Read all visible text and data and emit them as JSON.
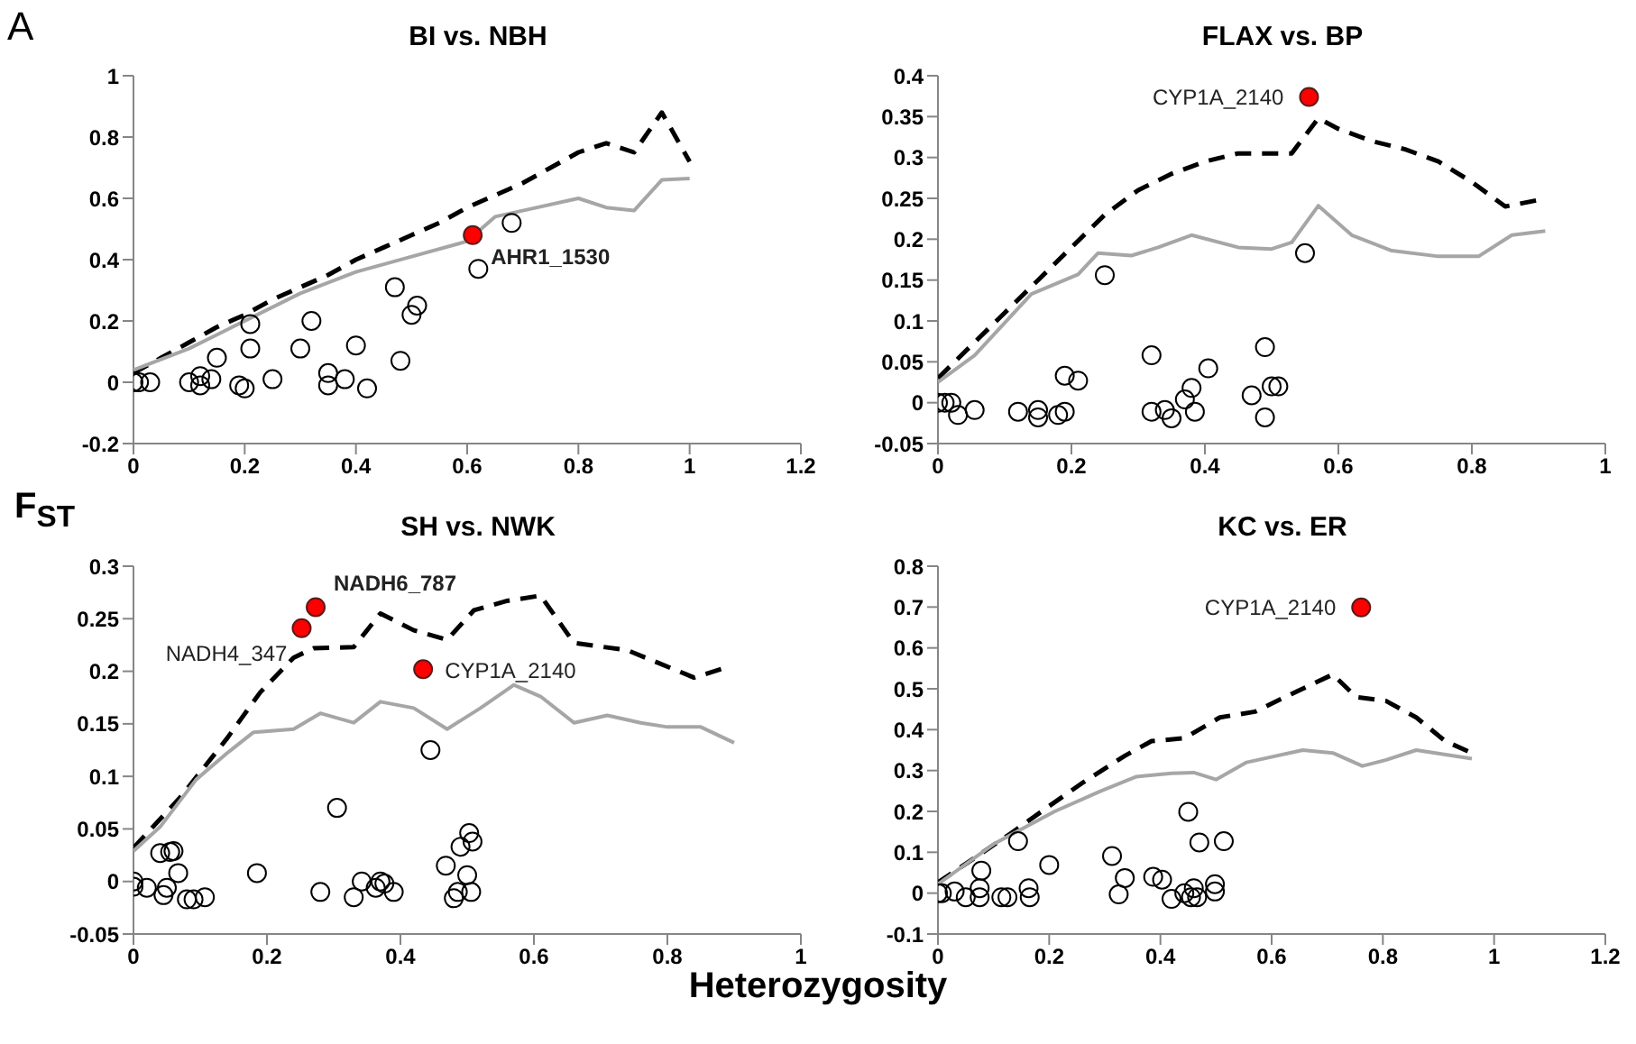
{
  "chart_data": [
    {
      "type": "scatter",
      "title": "BI vs. NBH",
      "ylabel": "F$_{ST}$",
      "xlim": [
        0,
        1.2
      ],
      "xticks": [
        0,
        0.2,
        0.4,
        0.6,
        0.8,
        1,
        1.2
      ],
      "ylim": [
        -0.2,
        1
      ],
      "yticks": [
        -0.2,
        0,
        0.2,
        0.4,
        0.6,
        0.8,
        1
      ],
      "series": [
        {
          "type": "line",
          "line_style": "dashed",
          "color": "#000000",
          "x": [
            0,
            0.05,
            0.1,
            0.15,
            0.2,
            0.25,
            0.3,
            0.35,
            0.4,
            0.45,
            0.5,
            0.55,
            0.6,
            0.65,
            0.7,
            0.75,
            0.8,
            0.85,
            0.9,
            0.95,
            1.0
          ],
          "values": [
            0.03,
            0.08,
            0.13,
            0.18,
            0.22,
            0.27,
            0.31,
            0.35,
            0.4,
            0.44,
            0.48,
            0.52,
            0.57,
            0.61,
            0.65,
            0.7,
            0.75,
            0.78,
            0.75,
            0.88,
            0.72
          ]
        },
        {
          "type": "line",
          "line_style": "solid",
          "color": "#a6a6a6",
          "x": [
            0,
            0.1,
            0.2,
            0.3,
            0.4,
            0.5,
            0.6,
            0.65,
            0.7,
            0.8,
            0.85,
            0.9,
            0.95,
            1.0
          ],
          "values": [
            0.04,
            0.11,
            0.2,
            0.29,
            0.36,
            0.41,
            0.46,
            0.54,
            0.56,
            0.6,
            0.57,
            0.56,
            0.66,
            0.665
          ]
        },
        {
          "type": "scatter",
          "marker": "circle",
          "color": "#000000",
          "x": [
            0,
            0.01,
            0.03,
            0.1,
            0.12,
            0.12,
            0.14,
            0.15,
            0.19,
            0.2,
            0.21,
            0.21,
            0.25,
            0.3,
            0.32,
            0.35,
            0.35,
            0.38,
            0.4,
            0.42,
            0.47,
            0.48,
            0.5,
            0.51,
            0.62,
            0.68
          ],
          "values": [
            0,
            0,
            0,
            0,
            -0.01,
            0.02,
            0.01,
            0.08,
            -0.01,
            -0.02,
            0.19,
            0.11,
            0.01,
            0.11,
            0.2,
            0.03,
            -0.01,
            0.01,
            0.12,
            -0.02,
            0.31,
            0.07,
            0.22,
            0.25,
            0.37,
            0.52
          ]
        },
        {
          "type": "scatter",
          "marker": "circle",
          "color": "#ff0000",
          "x": [
            0.61
          ],
          "values": [
            0.48
          ]
        }
      ],
      "annotations": [
        "A",
        {
          "text": "AHR1_1530",
          "x": 0.61,
          "y": 0.48
        }
      ]
    },
    {
      "type": "scatter",
      "title": "FLAX vs. BP",
      "xlim": [
        0,
        1
      ],
      "xticks": [
        0,
        0.2,
        0.4,
        0.6,
        0.8,
        1
      ],
      "ylim": [
        -0.05,
        0.4
      ],
      "yticks": [
        -0.05,
        0,
        0.05,
        0.1,
        0.15,
        0.2,
        0.25,
        0.3,
        0.35,
        0.4
      ],
      "series": [
        {
          "type": "line",
          "line_style": "dashed",
          "color": "#000000",
          "x": [
            0,
            0.05,
            0.1,
            0.15,
            0.2,
            0.25,
            0.3,
            0.35,
            0.4,
            0.45,
            0.5,
            0.53,
            0.57,
            0.6,
            0.65,
            0.7,
            0.75,
            0.8,
            0.85,
            0.9
          ],
          "values": [
            0.03,
            0.07,
            0.11,
            0.15,
            0.19,
            0.23,
            0.26,
            0.28,
            0.295,
            0.305,
            0.305,
            0.305,
            0.348,
            0.335,
            0.32,
            0.31,
            0.295,
            0.27,
            0.24,
            0.248
          ]
        },
        {
          "type": "line",
          "line_style": "solid",
          "color": "#a6a6a6",
          "x": [
            0,
            0.055,
            0.14,
            0.21,
            0.24,
            0.29,
            0.33,
            0.38,
            0.45,
            0.5,
            0.53,
            0.57,
            0.62,
            0.68,
            0.75,
            0.81,
            0.86,
            0.91
          ],
          "values": [
            0.025,
            0.058,
            0.133,
            0.157,
            0.183,
            0.18,
            0.19,
            0.205,
            0.19,
            0.188,
            0.196,
            0.241,
            0.205,
            0.186,
            0.179,
            0.179,
            0.205,
            0.21
          ]
        },
        {
          "type": "scatter",
          "marker": "circle",
          "color": "#000000",
          "x": [
            0,
            0.01,
            0.02,
            0.03,
            0.055,
            0.12,
            0.15,
            0.15,
            0.18,
            0.19,
            0.19,
            0.21,
            0.25,
            0.32,
            0.32,
            0.34,
            0.35,
            0.37,
            0.38,
            0.385,
            0.405,
            0.47,
            0.49,
            0.49,
            0.5,
            0.51,
            0.55
          ],
          "values": [
            0,
            0,
            0,
            -0.015,
            -0.009,
            -0.011,
            -0.009,
            -0.018,
            -0.015,
            -0.011,
            0.033,
            0.027,
            0.156,
            0.058,
            -0.011,
            -0.009,
            -0.019,
            0.004,
            0.018,
            -0.011,
            0.042,
            0.009,
            0.068,
            -0.018,
            0.02,
            0.02,
            0.183
          ]
        },
        {
          "type": "scatter",
          "marker": "circle",
          "color": "#ff0000",
          "x": [
            0.556
          ],
          "values": [
            0.374
          ]
        }
      ],
      "annotations": [
        {
          "text": "CYP1A_2140",
          "x": 0.556,
          "y": 0.374
        }
      ]
    },
    {
      "type": "scatter",
      "title": "SH vs. NWK",
      "xlabel": "Heterozygosity",
      "xlim": [
        0,
        1
      ],
      "xticks": [
        0,
        0.2,
        0.4,
        0.6,
        0.8,
        1
      ],
      "ylim": [
        -0.05,
        0.3
      ],
      "yticks": [
        -0.05,
        0,
        0.05,
        0.1,
        0.15,
        0.2,
        0.25,
        0.3
      ],
      "series": [
        {
          "type": "line",
          "line_style": "dashed",
          "color": "#000000",
          "x": [
            0,
            0.07,
            0.14,
            0.19,
            0.24,
            0.27,
            0.33,
            0.37,
            0.42,
            0.47,
            0.51,
            0.56,
            0.61,
            0.66,
            0.74,
            0.84,
            0.89
          ],
          "values": [
            0.032,
            0.08,
            0.136,
            0.18,
            0.213,
            0.222,
            0.223,
            0.255,
            0.239,
            0.23,
            0.258,
            0.267,
            0.272,
            0.227,
            0.22,
            0.194,
            0.204
          ]
        },
        {
          "type": "line",
          "line_style": "solid",
          "color": "#a6a6a6",
          "x": [
            0,
            0.04,
            0.094,
            0.14,
            0.18,
            0.24,
            0.28,
            0.33,
            0.37,
            0.42,
            0.47,
            0.52,
            0.57,
            0.61,
            0.66,
            0.71,
            0.76,
            0.8,
            0.85,
            0.9
          ],
          "values": [
            0.029,
            0.052,
            0.097,
            0.122,
            0.142,
            0.145,
            0.16,
            0.151,
            0.171,
            0.165,
            0.145,
            0.165,
            0.187,
            0.176,
            0.151,
            0.158,
            0.151,
            0.147,
            0.147,
            0.132
          ]
        },
        {
          "type": "scatter",
          "marker": "circle",
          "color": "#000000",
          "x": [
            0,
            0,
            0.02,
            0.04,
            0.045,
            0.05,
            0.055,
            0.06,
            0.067,
            0.08,
            0.09,
            0.107,
            0.185,
            0.28,
            0.305,
            0.33,
            0.342,
            0.363,
            0.37,
            0.376,
            0.39,
            0.445,
            0.468,
            0.48,
            0.486,
            0.49,
            0.5,
            0.503,
            0.508,
            0.506
          ],
          "values": [
            0,
            -0.005,
            -0.006,
            0.027,
            -0.013,
            -0.006,
            0.028,
            0.029,
            0.008,
            -0.017,
            -0.017,
            -0.015,
            0.008,
            -0.01,
            0.07,
            -0.015,
            0,
            -0.006,
            0,
            -0.002,
            -0.01,
            0.125,
            0.015,
            -0.016,
            -0.01,
            0.033,
            0.006,
            0.046,
            0.038,
            -0.01
          ]
        },
        {
          "type": "scatter",
          "marker": "circle",
          "color": "#ff0000",
          "x": [
            0.273,
            0.252,
            0.434
          ],
          "values": [
            0.261,
            0.241,
            0.202
          ]
        }
      ],
      "annotations": [
        {
          "text": "NADH6_787",
          "x": 0.273,
          "y": 0.261
        },
        {
          "text": "NADH4_347",
          "x": 0.252,
          "y": 0.241
        },
        {
          "text": "CYP1A_2140",
          "x": 0.434,
          "y": 0.202
        }
      ]
    },
    {
      "type": "scatter",
      "title": "KC vs. ER",
      "xlim": [
        0,
        1.2
      ],
      "xticks": [
        0,
        0.2,
        0.4,
        0.6,
        0.8,
        1,
        1.2
      ],
      "ylim": [
        -0.1,
        0.8
      ],
      "yticks": [
        -0.1,
        0,
        0.1,
        0.2,
        0.3,
        0.4,
        0.5,
        0.6,
        0.7,
        0.8
      ],
      "series": [
        {
          "type": "line",
          "line_style": "dashed",
          "color": "#000000",
          "x": [
            0,
            0.07,
            0.133,
            0.2,
            0.26,
            0.336,
            0.384,
            0.443,
            0.507,
            0.57,
            0.635,
            0.71,
            0.752,
            0.806,
            0.86,
            0.912,
            0.96
          ],
          "values": [
            0.026,
            0.09,
            0.148,
            0.213,
            0.27,
            0.336,
            0.372,
            0.379,
            0.43,
            0.444,
            0.487,
            0.535,
            0.48,
            0.47,
            0.43,
            0.372,
            0.343
          ]
        },
        {
          "type": "line",
          "line_style": "solid",
          "color": "#a6a6a6",
          "x": [
            0,
            0.1,
            0.21,
            0.293,
            0.357,
            0.42,
            0.46,
            0.5,
            0.555,
            0.656,
            0.71,
            0.763,
            0.806,
            0.86,
            0.96
          ],
          "values": [
            0.022,
            0.12,
            0.2,
            0.25,
            0.285,
            0.293,
            0.295,
            0.278,
            0.32,
            0.35,
            0.343,
            0.311,
            0.326,
            0.35,
            0.329
          ]
        },
        {
          "type": "scatter",
          "marker": "circle",
          "color": "#000000",
          "x": [
            0,
            0.007,
            0.03,
            0.05,
            0.075,
            0.078,
            0.075,
            0.114,
            0.125,
            0.144,
            0.163,
            0.165,
            0.2,
            0.313,
            0.325,
            0.336,
            0.387,
            0.403,
            0.42,
            0.443,
            0.45,
            0.455,
            0.46,
            0.466,
            0.47,
            0.498,
            0.498,
            0.514
          ],
          "values": [
            0,
            0,
            0.004,
            -0.01,
            0.012,
            0.055,
            -0.01,
            -0.01,
            -0.01,
            0.127,
            0.012,
            -0.01,
            0.069,
            0.091,
            -0.003,
            0.037,
            0.04,
            0.033,
            -0.014,
            0,
            0.199,
            -0.01,
            0.012,
            -0.01,
            0.124,
            0.022,
            0.004,
            0.127
          ]
        },
        {
          "type": "scatter",
          "marker": "circle",
          "color": "#ff0000",
          "x": [
            0.761
          ],
          "values": [
            0.699
          ]
        }
      ],
      "annotations": [
        {
          "text": "CYP1A_2140",
          "x": 0.761,
          "y": 0.699
        }
      ]
    }
  ]
}
